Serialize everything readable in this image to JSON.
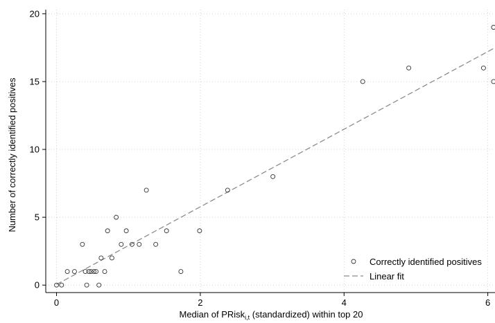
{
  "chart_data": {
    "type": "scatter",
    "xlabel_main": "Median of PRisk",
    "xlabel_sub": "i,t",
    "xlabel_rest": " (standardized) within top 20",
    "ylabel": "Number of correctly identified positives",
    "xlim": [
      -0.15,
      6.1
    ],
    "ylim": [
      -0.55,
      20.3
    ],
    "x_ticks": [
      0,
      2,
      4,
      6
    ],
    "y_ticks": [
      0,
      5,
      10,
      15,
      20
    ],
    "grid": true,
    "legend_position": "bottom-right",
    "series": [
      {
        "name": "Correctly identified positives",
        "marker": "hollow-circle",
        "points": [
          {
            "x": 0.0,
            "y": 0
          },
          {
            "x": 0.07,
            "y": 0
          },
          {
            "x": 0.15,
            "y": 1
          },
          {
            "x": 0.25,
            "y": 1
          },
          {
            "x": 0.36,
            "y": 3
          },
          {
            "x": 0.4,
            "y": 1
          },
          {
            "x": 0.42,
            "y": 0
          },
          {
            "x": 0.45,
            "y": 1
          },
          {
            "x": 0.48,
            "y": 1
          },
          {
            "x": 0.52,
            "y": 1
          },
          {
            "x": 0.55,
            "y": 1
          },
          {
            "x": 0.59,
            "y": 0
          },
          {
            "x": 0.62,
            "y": 2
          },
          {
            "x": 0.67,
            "y": 1
          },
          {
            "x": 0.71,
            "y": 4
          },
          {
            "x": 0.77,
            "y": 2
          },
          {
            "x": 0.83,
            "y": 5
          },
          {
            "x": 0.9,
            "y": 3
          },
          {
            "x": 0.97,
            "y": 4
          },
          {
            "x": 1.05,
            "y": 3
          },
          {
            "x": 1.15,
            "y": 3
          },
          {
            "x": 1.25,
            "y": 7
          },
          {
            "x": 1.38,
            "y": 3
          },
          {
            "x": 1.53,
            "y": 4
          },
          {
            "x": 1.73,
            "y": 1
          },
          {
            "x": 1.99,
            "y": 4
          },
          {
            "x": 2.38,
            "y": 7
          },
          {
            "x": 3.01,
            "y": 8
          },
          {
            "x": 4.26,
            "y": 15
          },
          {
            "x": 4.9,
            "y": 16
          },
          {
            "x": 5.94,
            "y": 16
          },
          {
            "x": 6.08,
            "y": 15
          },
          {
            "x": 6.08,
            "y": 19
          }
        ]
      },
      {
        "name": "Linear fit",
        "marker": "dashed-line",
        "intercept": 0.05,
        "slope": 2.86
      }
    ]
  }
}
